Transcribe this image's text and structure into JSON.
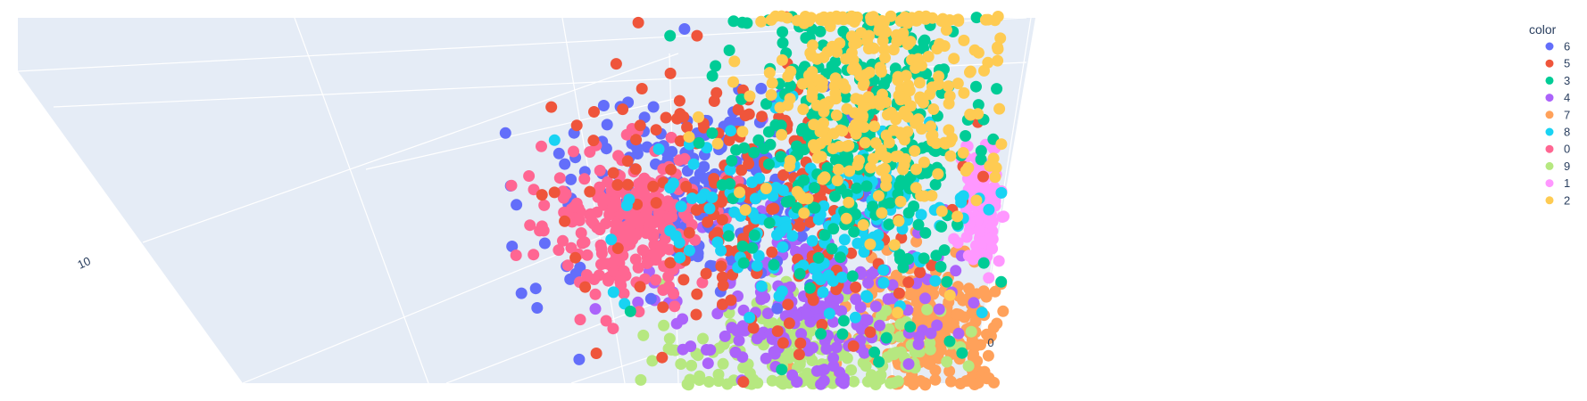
{
  "chart_data": {
    "type": "scatter",
    "subtype": "scatter3d",
    "legend": {
      "title": "color",
      "placement": "right",
      "entries": [
        {
          "label": "6",
          "color": "#636efa"
        },
        {
          "label": "5",
          "color": "#EF553B"
        },
        {
          "label": "3",
          "color": "#00cc96"
        },
        {
          "label": "4",
          "color": "#ab63fa"
        },
        {
          "label": "7",
          "color": "#FFA15A"
        },
        {
          "label": "8",
          "color": "#19d3f3"
        },
        {
          "label": "0",
          "color": "#FF6692"
        },
        {
          "label": "9",
          "color": "#B6E880"
        },
        {
          "label": "1",
          "color": "#FF97FF"
        },
        {
          "label": "2",
          "color": "#FECB52"
        }
      ]
    },
    "axis_ticks": [
      "10",
      "0"
    ],
    "background": "#E5ECF6",
    "grid": true
  }
}
